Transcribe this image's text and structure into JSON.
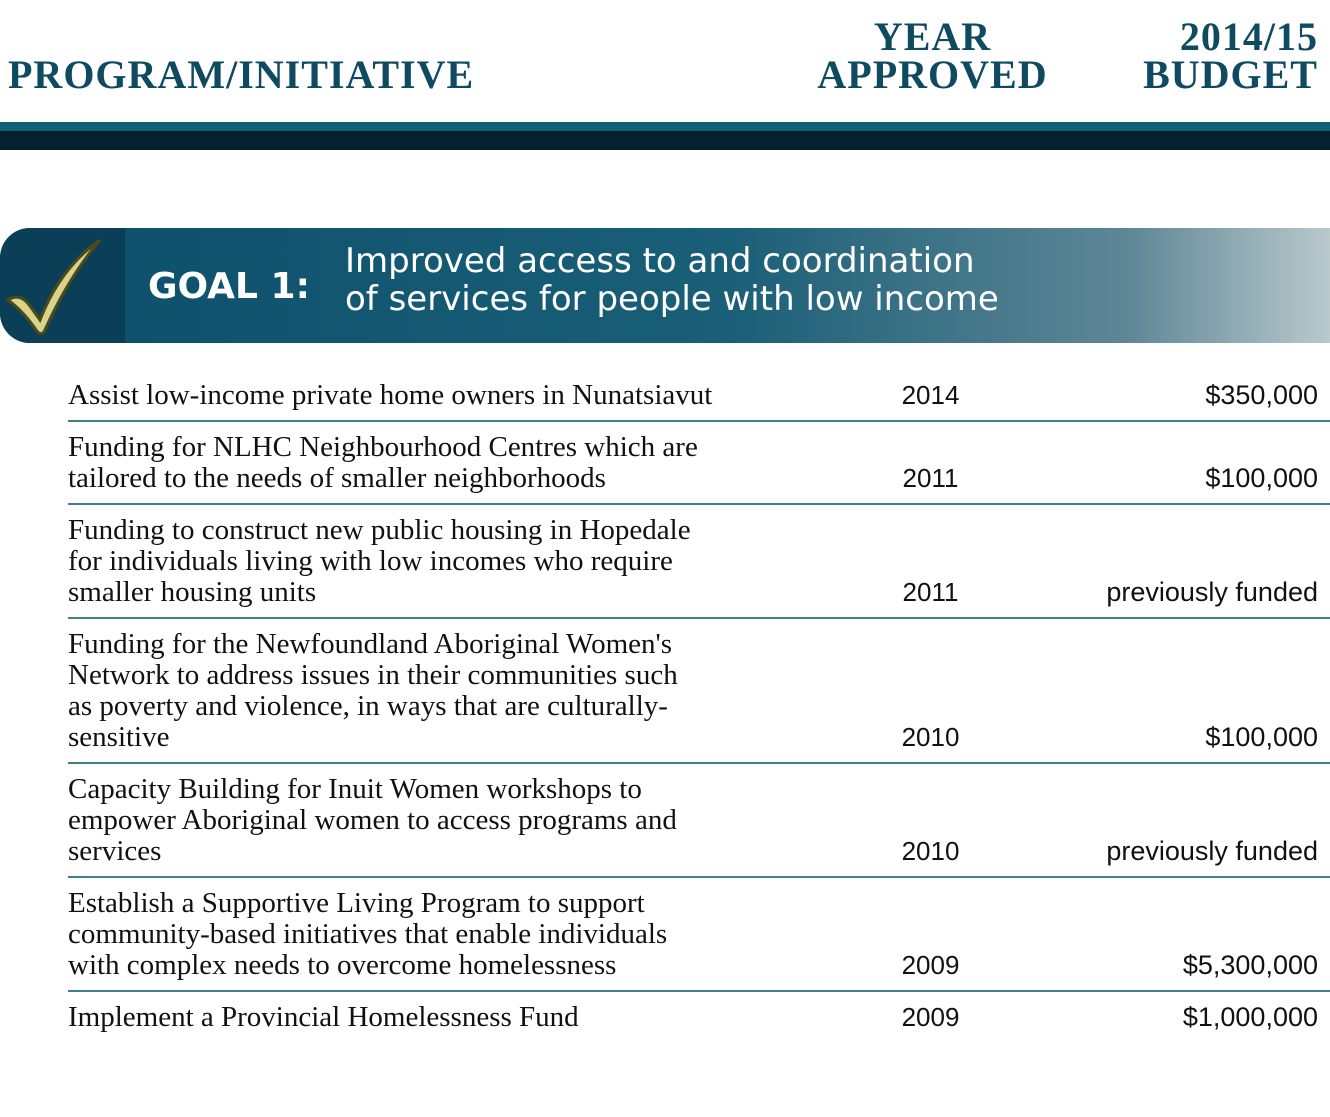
{
  "header": {
    "program": "PROGRAM/INITIATIVE",
    "year": [
      "YEAR",
      "APPROVED"
    ],
    "budget": [
      "2014/15",
      "BUDGET"
    ]
  },
  "goal": {
    "label": "GOAL 1:",
    "text": [
      "Improved access to and coordination",
      "of services for people with low income"
    ]
  },
  "table": {
    "rows": [
      {
        "program": [
          "Assist low-income private home owners in Nunatsiavut"
        ],
        "year": "2014",
        "budget": "$350,000"
      },
      {
        "program": [
          "Funding for NLHC Neighbourhood Centres which are",
          "tailored to the needs of smaller neighborhoods"
        ],
        "year": "2011",
        "budget": "$100,000"
      },
      {
        "program": [
          "Funding to construct new public housing in Hopedale",
          "for individuals living with low incomes who require",
          "smaller housing units"
        ],
        "year": "2011",
        "budget": "previously funded"
      },
      {
        "program": [
          "Funding for the Newfoundland Aboriginal Women's",
          "Network to address issues in their communities such",
          "as poverty and violence, in ways that are culturally-",
          "sensitive"
        ],
        "year": "2010",
        "budget": "$100,000"
      },
      {
        "program": [
          "Capacity Building for Inuit Women workshops to",
          "empower Aboriginal women to access programs and",
          "services"
        ],
        "year": "2010",
        "budget": "previously funded"
      },
      {
        "program": [
          "Establish a Supportive Living Program to support",
          "community-based initiatives that enable individuals",
          "with complex needs to overcome homelessness"
        ],
        "year": "2009",
        "budget": "$5,300,000"
      },
      {
        "program": [
          "Implement a Provincial Homelessness Fund"
        ],
        "year": "2009",
        "budget": "$1,000,000"
      }
    ]
  }
}
